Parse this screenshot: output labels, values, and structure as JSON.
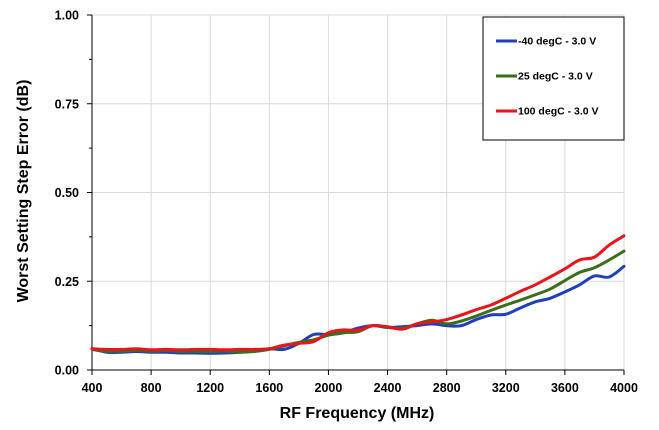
{
  "chart_data": {
    "type": "line",
    "title": "",
    "xlabel": "RF Frequency (MHz)",
    "ylabel": "Worst Setting Step Error (dB)",
    "xlim": [
      400,
      4000
    ],
    "ylim": [
      0,
      1
    ],
    "xticks": [
      400,
      800,
      1200,
      1600,
      2000,
      2400,
      2800,
      3200,
      3600,
      4000
    ],
    "xtick_labels": [
      "400",
      "800",
      "1200",
      "1600",
      "2000",
      "2400",
      "2800",
      "3200",
      "3600",
      "4000"
    ],
    "yticks": [
      0,
      0.25,
      0.5,
      0.75,
      1.0
    ],
    "ytick_labels": [
      "0.00",
      "0.25",
      "0.50",
      "0.75",
      "1.00"
    ],
    "grid": true,
    "legend_position": "top-right",
    "series": [
      {
        "name": "-40 degC - 3.0 V",
        "color": "#1f3fbf",
        "x": [
          400,
          500,
          600,
          700,
          800,
          900,
          1000,
          1100,
          1200,
          1300,
          1400,
          1500,
          1600,
          1700,
          1800,
          1900,
          2000,
          2100,
          2200,
          2300,
          2400,
          2500,
          2600,
          2700,
          2800,
          2900,
          3000,
          3100,
          3200,
          3300,
          3400,
          3500,
          3600,
          3700,
          3800,
          3900,
          4000
        ],
        "y": [
          0.06,
          0.05,
          0.05,
          0.052,
          0.05,
          0.05,
          0.048,
          0.048,
          0.047,
          0.048,
          0.05,
          0.055,
          0.06,
          0.058,
          0.075,
          0.1,
          0.1,
          0.105,
          0.118,
          0.125,
          0.12,
          0.122,
          0.125,
          0.13,
          0.125,
          0.125,
          0.142,
          0.155,
          0.157,
          0.175,
          0.192,
          0.202,
          0.22,
          0.24,
          0.265,
          0.262,
          0.292
        ]
      },
      {
        "name": "25 degC - 3.0 V",
        "color": "#3a6e1a",
        "x": [
          400,
          500,
          600,
          700,
          800,
          900,
          1000,
          1100,
          1200,
          1300,
          1400,
          1500,
          1600,
          1700,
          1800,
          1900,
          2000,
          2100,
          2200,
          2300,
          2400,
          2500,
          2600,
          2700,
          2800,
          2900,
          3000,
          3100,
          3200,
          3300,
          3400,
          3500,
          3600,
          3700,
          3800,
          3900,
          4000
        ],
        "y": [
          0.058,
          0.052,
          0.053,
          0.055,
          0.053,
          0.055,
          0.052,
          0.052,
          0.052,
          0.053,
          0.05,
          0.052,
          0.058,
          0.068,
          0.078,
          0.085,
          0.098,
          0.105,
          0.108,
          0.125,
          0.12,
          0.117,
          0.13,
          0.14,
          0.13,
          0.138,
          0.152,
          0.168,
          0.183,
          0.197,
          0.212,
          0.228,
          0.252,
          0.275,
          0.288,
          0.31,
          0.335
        ]
      },
      {
        "name": "100 degC - 3.0 V",
        "color": "#e8151b",
        "x": [
          400,
          500,
          600,
          700,
          800,
          900,
          1000,
          1100,
          1200,
          1300,
          1400,
          1500,
          1600,
          1700,
          1800,
          1900,
          2000,
          2100,
          2200,
          2300,
          2400,
          2500,
          2600,
          2700,
          2800,
          2900,
          3000,
          3100,
          3200,
          3300,
          3400,
          3500,
          3600,
          3700,
          3800,
          3900,
          4000
        ],
        "y": [
          0.06,
          0.058,
          0.058,
          0.06,
          0.057,
          0.058,
          0.057,
          0.058,
          0.058,
          0.057,
          0.058,
          0.058,
          0.06,
          0.07,
          0.075,
          0.08,
          0.105,
          0.113,
          0.112,
          0.125,
          0.122,
          0.115,
          0.13,
          0.135,
          0.142,
          0.155,
          0.17,
          0.183,
          0.202,
          0.222,
          0.24,
          0.262,
          0.285,
          0.31,
          0.318,
          0.352,
          0.378
        ]
      }
    ]
  }
}
